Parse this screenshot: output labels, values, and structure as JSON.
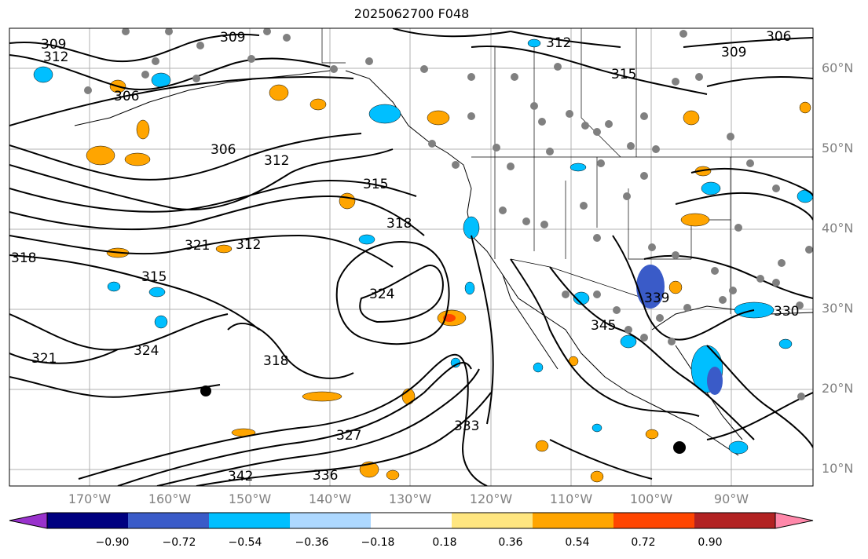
{
  "title": "2025062700 F048",
  "lat_labels": [
    "60°N",
    "50°N",
    "40°N",
    "30°N",
    "20°N",
    "10°N"
  ],
  "lon_labels": [
    "170°W",
    "160°W",
    "150°W",
    "140°W",
    "130°W",
    "120°W",
    "110°W",
    "100°W",
    "90°W"
  ],
  "contour_labels": [
    "309",
    "312",
    "306",
    "309",
    "312",
    "315",
    "306",
    "309",
    "306",
    "312",
    "315",
    "318",
    "321",
    "312",
    "324",
    "315",
    "318",
    "321",
    "324",
    "327",
    "330",
    "333",
    "336",
    "339",
    "342",
    "345",
    "318"
  ],
  "colorbar": {
    "tick_labels": [
      "−0.90",
      "−0.72",
      "−0.54",
      "−0.36",
      "−0.18",
      "0.18",
      "0.36",
      "0.54",
      "0.72",
      "0.90"
    ],
    "bins": [
      {
        "color": "#9932cc"
      },
      {
        "color": "#000080"
      },
      {
        "color": "#3a5bc8"
      },
      {
        "color": "#00bfff"
      },
      {
        "color": "#add8ff"
      },
      {
        "color": "#ffffff"
      },
      {
        "color": "#ffe680"
      },
      {
        "color": "#ffa500"
      },
      {
        "color": "#ff4500"
      },
      {
        "color": "#b22222"
      },
      {
        "color": "#ff88aa"
      }
    ]
  },
  "colors": {
    "contour": "#000000",
    "grid": "#b0b0b0",
    "coast": "#000000",
    "station_dot": "#808080",
    "positive_fill": "#ffa500",
    "negative_fill": "#00bfff"
  }
}
